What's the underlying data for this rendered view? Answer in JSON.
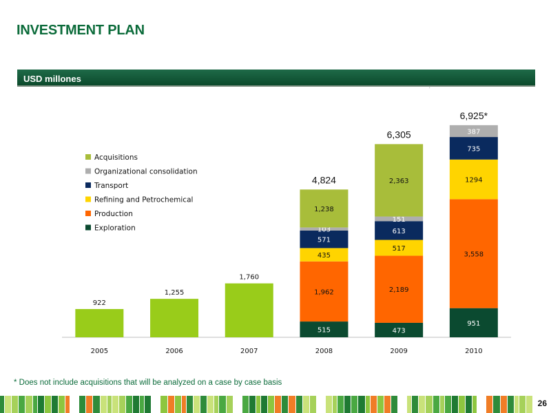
{
  "slide": {
    "title": "INVESTMENT PLAN",
    "unit_label": "USD millones",
    "footnote": "* Does not include acquisitions that will be analyzed on a case by case basis",
    "page_number": "26"
  },
  "colors": {
    "title_green": "#0b6b3a",
    "header_bar": "#0c4a2c",
    "historical_bar": "#99cc1a"
  },
  "chart_data": {
    "type": "bar",
    "stacked": true,
    "categories": [
      "2005",
      "2006",
      "2007",
      "2008",
      "2009",
      "2010"
    ],
    "ylim": [
      0,
      7000
    ],
    "legend_position": "left",
    "historical": {
      "color": "#99cc1a",
      "values": [
        922,
        1255,
        1760,
        null,
        null,
        null
      ],
      "labels": [
        "922",
        "1,255",
        "1,760",
        "",
        "",
        ""
      ]
    },
    "series": [
      {
        "name": "Exploration",
        "color": "#0b4a30",
        "text_color": "#ffffff",
        "values": [
          null,
          null,
          null,
          515,
          473,
          951
        ],
        "labels": [
          "",
          "",
          "",
          "515",
          "473",
          "951"
        ]
      },
      {
        "name": "Production",
        "color": "#ff6600",
        "text_color": "#111111",
        "values": [
          null,
          null,
          null,
          1962,
          2189,
          3558
        ],
        "labels": [
          "",
          "",
          "",
          "1,962",
          "2,189",
          "3,558"
        ]
      },
      {
        "name": "Refining and Petrochemical",
        "color": "#ffd400",
        "text_color": "#111111",
        "values": [
          null,
          null,
          null,
          435,
          517,
          1294
        ],
        "labels": [
          "",
          "",
          "",
          "435",
          "517",
          "1294"
        ]
      },
      {
        "name": "Transport",
        "color": "#0a2a5e",
        "text_color": "#ffffff",
        "values": [
          null,
          null,
          null,
          571,
          613,
          735
        ],
        "labels": [
          "",
          "",
          "",
          "571",
          "613",
          "735"
        ]
      },
      {
        "name": "Organizational consolidation",
        "color": "#aeaeae",
        "text_color": "#ffffff",
        "values": [
          null,
          null,
          null,
          103,
          151,
          387
        ],
        "labels": [
          "",
          "",
          "",
          "103",
          "151",
          "387"
        ]
      },
      {
        "name": "Acquisitions",
        "color": "#a8bd3a",
        "text_color": "#111111",
        "values": [
          null,
          null,
          null,
          1238,
          2363,
          null
        ],
        "labels": [
          "",
          "",
          "",
          "1,238",
          "2,363",
          ""
        ]
      }
    ],
    "totals": [
      "",
      "",
      "",
      "4,824",
      "6,305",
      "6,925*"
    ],
    "legend_order": [
      "Acquisitions",
      "Organizational consolidation",
      "Transport",
      "Refining and Petrochemical",
      "Production",
      "Exploration"
    ]
  }
}
